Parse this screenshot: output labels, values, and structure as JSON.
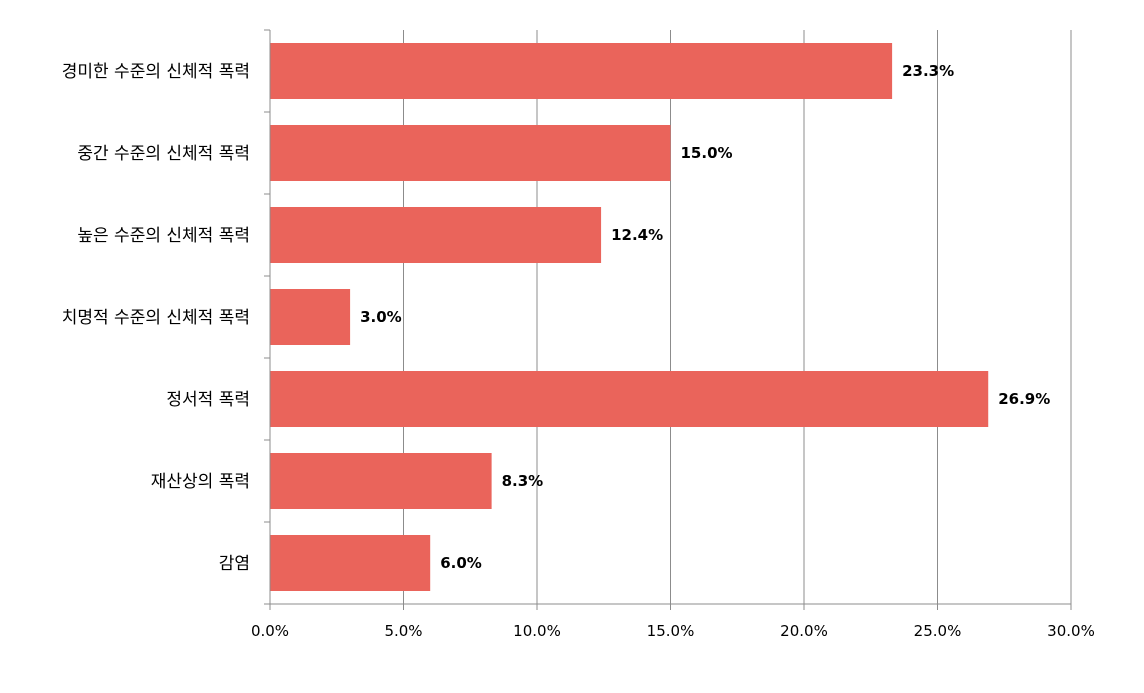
{
  "chart_data": {
    "type": "bar",
    "orientation": "horizontal",
    "categories": [
      "경미한 수준의 신체적 폭력",
      "중간 수준의 신체적 폭력",
      "높은 수준의 신체적 폭력",
      "치명적 수준의 신체적 폭력",
      "정서적 폭력",
      "재산상의 폭력",
      "감염"
    ],
    "values": [
      23.3,
      15.0,
      12.4,
      3.0,
      26.9,
      8.3,
      6.0
    ],
    "data_labels": [
      "23.3%",
      "15.0%",
      "12.4%",
      "3.0%",
      "26.9%",
      "8.3%",
      "6.0%"
    ],
    "xlim": [
      0,
      30
    ],
    "xticks": [
      0,
      5,
      10,
      15,
      20,
      25,
      30
    ],
    "xtick_labels": [
      "0.0%",
      "5.0%",
      "10.0%",
      "15.0%",
      "20.0%",
      "25.0%",
      "30.0%"
    ],
    "title": "",
    "xlabel": "",
    "ylabel": "",
    "grid": "vertical",
    "legend": "none",
    "bar_color": "#ea645b"
  }
}
